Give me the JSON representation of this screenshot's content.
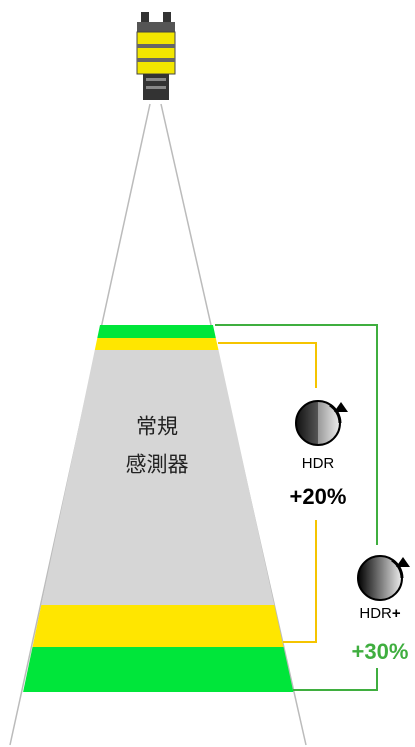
{
  "labels": {
    "sensor_line1": "常規",
    "sensor_line2": "感測器",
    "hdr": "HDR",
    "hdr_gain": "+20%",
    "hdr_plus": {
      "base": "HDR",
      "suffix": "+"
    },
    "hdr_plus_gain": "+30%"
  }
}
